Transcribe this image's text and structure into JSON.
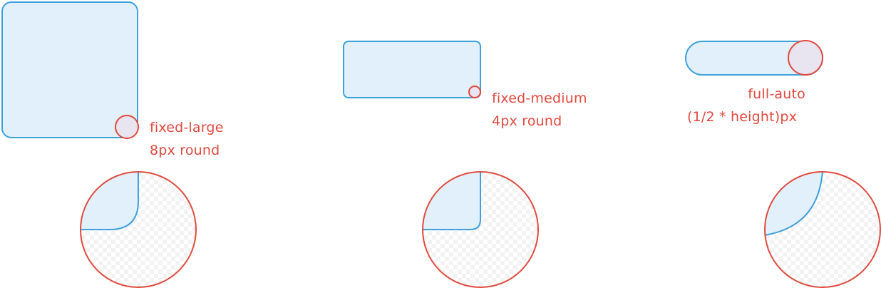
{
  "colors": {
    "shape_fill": "#e2f0fb",
    "shape_stroke": "#3da1dc",
    "accent_red": "#e0493e",
    "corner_fill": "#e8e4f0",
    "checker_light": "#ffffff",
    "checker_dark": "#f2f2f2"
  },
  "shapes": [
    {
      "name": "fixed-large",
      "line1": "fixed-large",
      "line2": "8px round"
    },
    {
      "name": "fixed-medium",
      "line1": "fixed-medium",
      "line2": "4px round"
    },
    {
      "name": "full-auto",
      "line1": "full-auto",
      "line2": "(1/2 * height)px"
    }
  ]
}
